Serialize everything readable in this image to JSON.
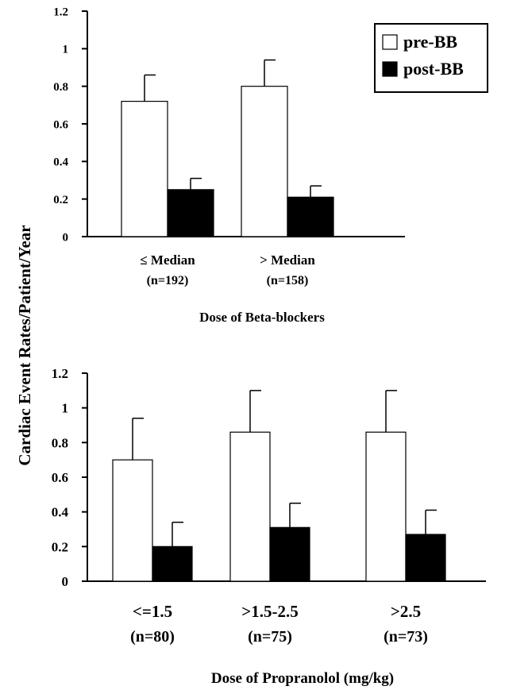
{
  "chart_data": [
    {
      "type": "bar",
      "categories": [
        "≤ Median",
        "> Median"
      ],
      "category_counts": [
        "(n=192)",
        "(n=158)"
      ],
      "series": [
        {
          "name": "pre-BB",
          "values": [
            0.72,
            0.8
          ],
          "errors": [
            0.14,
            0.14
          ],
          "color": "#ffffff"
        },
        {
          "name": "post-BB",
          "values": [
            0.25,
            0.21
          ],
          "errors": [
            0.06,
            0.06
          ],
          "color": "#000000"
        }
      ],
      "xlabel": "Dose of Beta-blockers",
      "ylabel": "Cardiac Event Rates/Patient/Year",
      "ylim": [
        0,
        1.2
      ],
      "yticks": [
        "0",
        "0.2",
        "0.4",
        "0.6",
        "0.8",
        "1",
        "1.2"
      ],
      "legend_position": "top-right",
      "grid": false
    },
    {
      "type": "bar",
      "categories": [
        "<=1.5",
        ">1.5-2.5",
        ">2.5"
      ],
      "category_counts": [
        "(n=80)",
        "(n=75)",
        "(n=73)"
      ],
      "series": [
        {
          "name": "pre-BB",
          "values": [
            0.7,
            0.86,
            0.86
          ],
          "errors": [
            0.24,
            0.24,
            0.24
          ],
          "color": "#ffffff"
        },
        {
          "name": "post-BB",
          "values": [
            0.2,
            0.31,
            0.27
          ],
          "errors": [
            0.14,
            0.14,
            0.14
          ],
          "color": "#000000"
        }
      ],
      "xlabel": "Dose of Propranolol (mg/kg)",
      "ylabel": "Cardiac Event Rates/Patient/Year",
      "ylim": [
        0,
        1.2
      ],
      "yticks": [
        "0",
        "0.2",
        "0.4",
        "0.6",
        "0.8",
        "1",
        "1.2"
      ],
      "legend_position": "none",
      "grid": false
    }
  ]
}
